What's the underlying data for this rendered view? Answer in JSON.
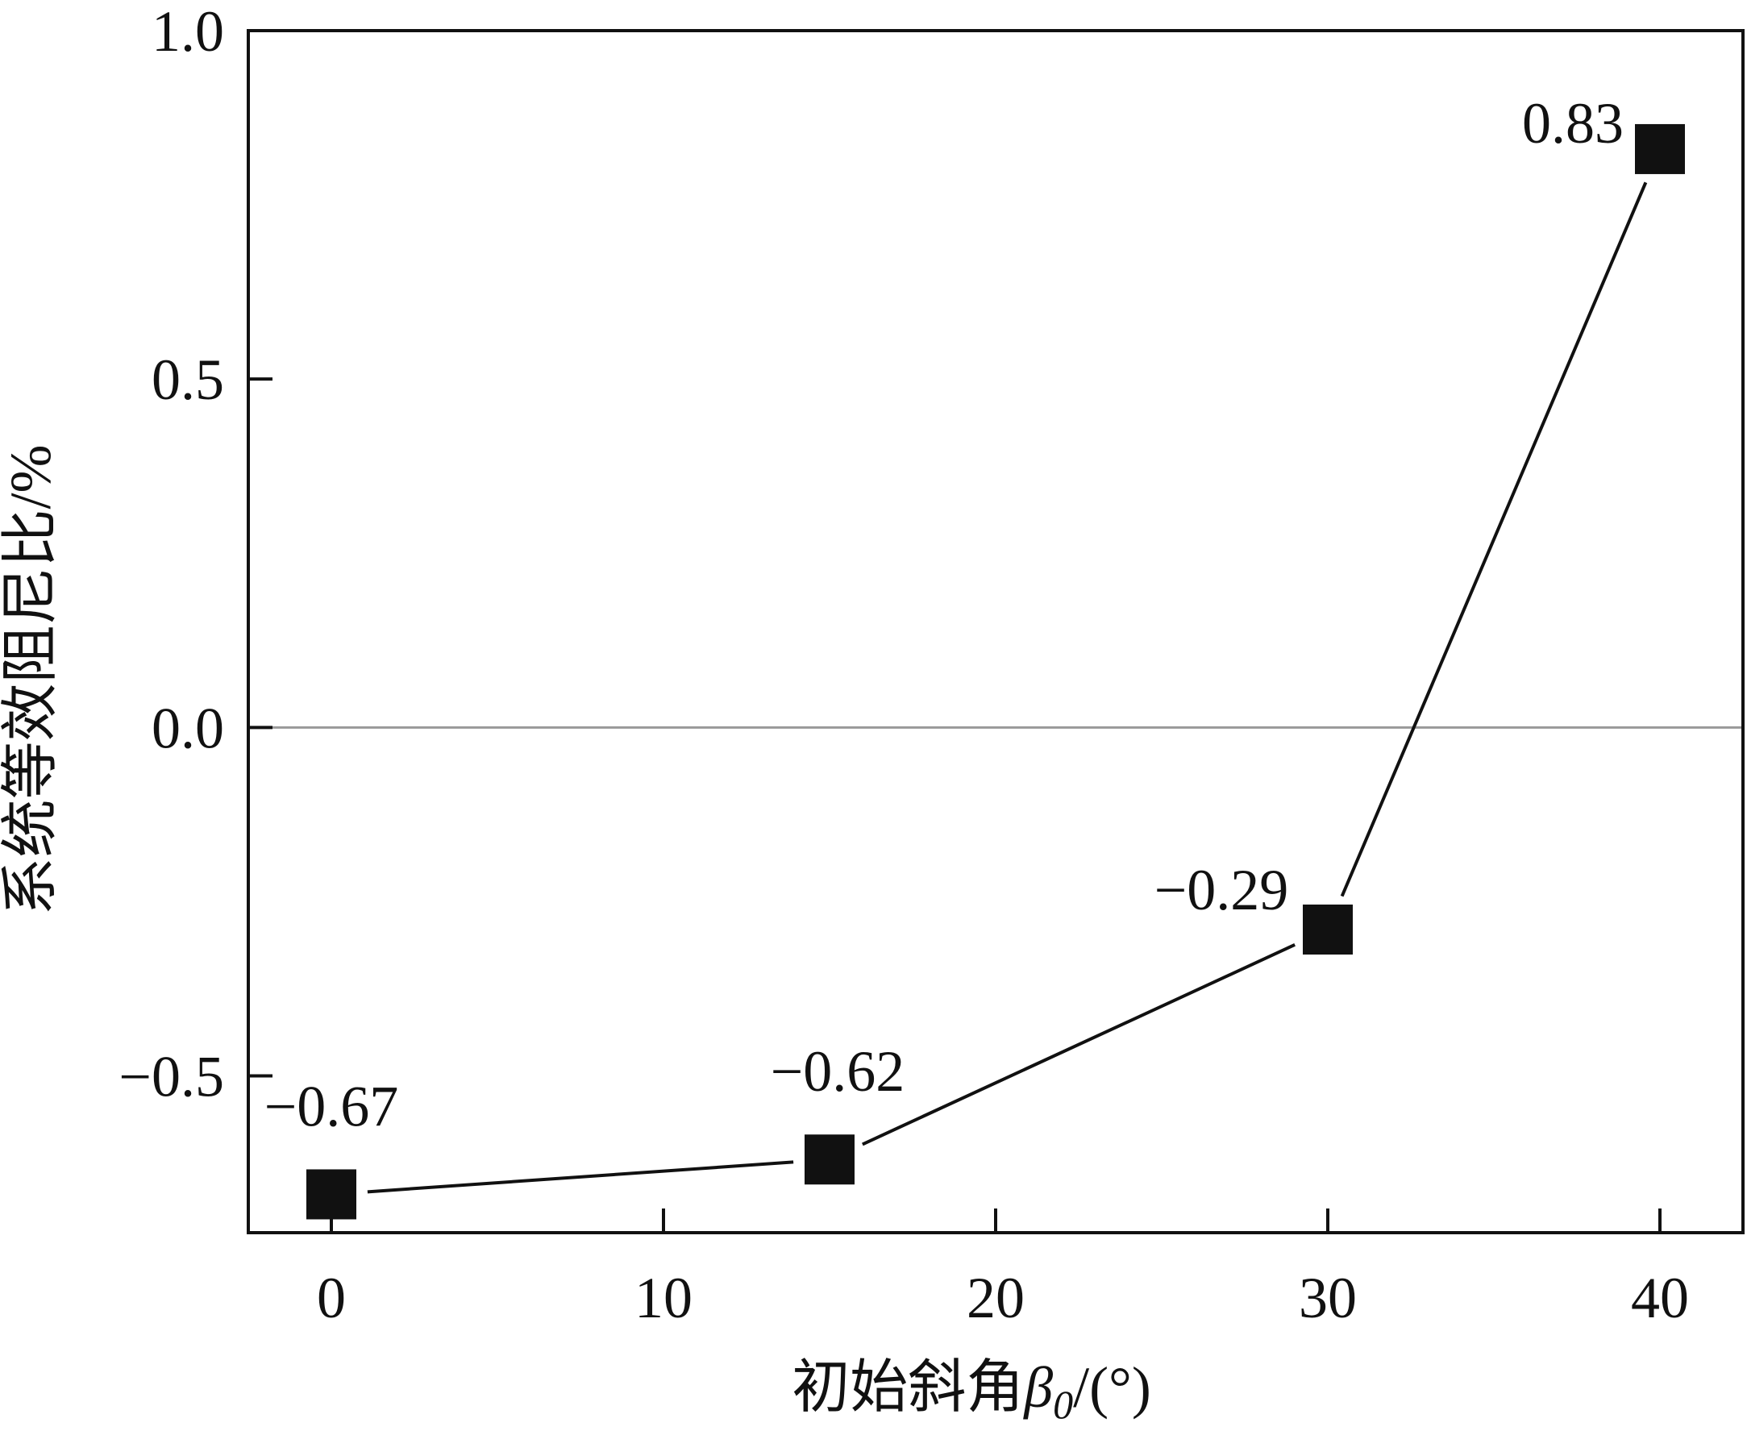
{
  "chart_data": {
    "type": "line",
    "title": "",
    "xlabel": "初始斜角β0/(°)",
    "xlabel_parts": {
      "main": "初始斜角",
      "symbol": "β",
      "subscript": "0",
      "unit": "/(°)"
    },
    "ylabel": "系统等效阻尼比/%",
    "xlim": [
      -2.5,
      42.5
    ],
    "ylim": [
      -0.725,
      1.0
    ],
    "x_ticks": [
      0,
      10,
      20,
      30,
      40
    ],
    "x_tick_labels": [
      "0",
      "10",
      "20",
      "30",
      "40"
    ],
    "y_ticks": [
      1.0,
      0.5,
      0.0,
      -0.5
    ],
    "y_tick_labels": [
      "1.0",
      "0.5",
      "0.0",
      "−0.5"
    ],
    "zero_reference_line": true,
    "grid": false,
    "legend": "none",
    "marker": "square",
    "colors": {
      "line": "#111111",
      "marker": "#111111",
      "zero_line": "#999999",
      "axes": "#111111"
    },
    "series": [
      {
        "x": [
          0,
          15,
          30,
          40
        ],
        "y": [
          -0.67,
          -0.62,
          -0.29,
          0.83
        ],
        "labels": [
          "−0.67",
          "−0.62",
          "−0.29",
          "0.83"
        ]
      }
    ]
  }
}
